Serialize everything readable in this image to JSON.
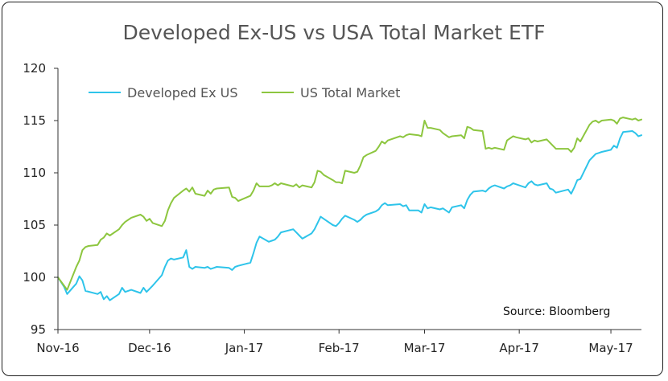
{
  "chart_data": {
    "type": "line",
    "title": "Developed Ex-US vs USA Total Market ETF",
    "source": "Source: Bloomberg",
    "ylim": [
      95,
      120
    ],
    "yticks": [
      95,
      100,
      105,
      110,
      115,
      120
    ],
    "xticks": [
      {
        "label": "Nov-16",
        "date": "2016-11-01"
      },
      {
        "label": "Dec-16",
        "date": "2016-12-01"
      },
      {
        "label": "Jan-17",
        "date": "2017-01-01"
      },
      {
        "label": "Feb-17",
        "date": "2017-02-01"
      },
      {
        "label": "Mar-17",
        "date": "2017-03-01"
      },
      {
        "label": "Apr-17",
        "date": "2017-04-01"
      },
      {
        "label": "May-17",
        "date": "2017-05-01"
      }
    ],
    "xlim": [
      "2016-11-01",
      "2017-05-11"
    ],
    "legend_position": "top-left",
    "grid": false,
    "series": [
      {
        "name": "Developed Ex US",
        "color": "#2ec4ea",
        "points": [
          [
            "2016-11-01",
            100.0
          ],
          [
            "2016-11-03",
            99.1
          ],
          [
            "2016-11-04",
            98.4
          ],
          [
            "2016-11-07",
            99.4
          ],
          [
            "2016-11-08",
            100.1
          ],
          [
            "2016-11-09",
            99.7
          ],
          [
            "2016-11-10",
            98.7
          ],
          [
            "2016-11-14",
            98.4
          ],
          [
            "2016-11-15",
            98.6
          ],
          [
            "2016-11-16",
            97.9
          ],
          [
            "2016-11-17",
            98.2
          ],
          [
            "2016-11-18",
            97.8
          ],
          [
            "2016-11-21",
            98.4
          ],
          [
            "2016-11-22",
            99.0
          ],
          [
            "2016-11-23",
            98.6
          ],
          [
            "2016-11-25",
            98.8
          ],
          [
            "2016-11-28",
            98.5
          ],
          [
            "2016-11-29",
            99.0
          ],
          [
            "2016-11-30",
            98.6
          ],
          [
            "2016-12-01",
            98.9
          ],
          [
            "2016-12-02",
            99.2
          ],
          [
            "2016-12-05",
            100.2
          ],
          [
            "2016-12-06",
            101.0
          ],
          [
            "2016-12-07",
            101.6
          ],
          [
            "2016-12-08",
            101.8
          ],
          [
            "2016-12-09",
            101.7
          ],
          [
            "2016-12-12",
            101.9
          ],
          [
            "2016-12-13",
            102.6
          ],
          [
            "2016-12-14",
            101.0
          ],
          [
            "2016-12-15",
            100.8
          ],
          [
            "2016-12-16",
            101.0
          ],
          [
            "2016-12-19",
            100.9
          ],
          [
            "2016-12-20",
            101.0
          ],
          [
            "2016-12-21",
            100.8
          ],
          [
            "2016-12-22",
            100.9
          ],
          [
            "2016-12-23",
            101.0
          ],
          [
            "2016-12-27",
            100.9
          ],
          [
            "2016-12-28",
            100.7
          ],
          [
            "2016-12-29",
            101.0
          ],
          [
            "2016-12-30",
            101.1
          ],
          [
            "2017-01-03",
            101.4
          ],
          [
            "2017-01-04",
            102.3
          ],
          [
            "2017-01-05",
            103.3
          ],
          [
            "2017-01-06",
            103.9
          ],
          [
            "2017-01-09",
            103.4
          ],
          [
            "2017-01-10",
            103.5
          ],
          [
            "2017-01-11",
            103.6
          ],
          [
            "2017-01-12",
            103.9
          ],
          [
            "2017-01-13",
            104.3
          ],
          [
            "2017-01-17",
            104.6
          ],
          [
            "2017-01-18",
            104.3
          ],
          [
            "2017-01-19",
            104.0
          ],
          [
            "2017-01-20",
            103.7
          ],
          [
            "2017-01-23",
            104.2
          ],
          [
            "2017-01-24",
            104.6
          ],
          [
            "2017-01-25",
            105.2
          ],
          [
            "2017-01-26",
            105.8
          ],
          [
            "2017-01-27",
            105.6
          ],
          [
            "2017-01-30",
            105.0
          ],
          [
            "2017-01-31",
            104.9
          ],
          [
            "2017-02-01",
            105.2
          ],
          [
            "2017-02-02",
            105.6
          ],
          [
            "2017-02-03",
            105.9
          ],
          [
            "2017-02-06",
            105.5
          ],
          [
            "2017-02-07",
            105.3
          ],
          [
            "2017-02-08",
            105.5
          ],
          [
            "2017-02-09",
            105.8
          ],
          [
            "2017-02-10",
            106.0
          ],
          [
            "2017-02-13",
            106.3
          ],
          [
            "2017-02-14",
            106.5
          ],
          [
            "2017-02-15",
            106.9
          ],
          [
            "2017-02-16",
            107.1
          ],
          [
            "2017-02-17",
            106.9
          ],
          [
            "2017-02-21",
            107.0
          ],
          [
            "2017-02-22",
            106.8
          ],
          [
            "2017-02-23",
            106.9
          ],
          [
            "2017-02-24",
            106.4
          ],
          [
            "2017-02-27",
            106.4
          ],
          [
            "2017-02-28",
            106.2
          ],
          [
            "2017-03-01",
            107.0
          ],
          [
            "2017-03-02",
            106.6
          ],
          [
            "2017-03-03",
            106.7
          ],
          [
            "2017-03-06",
            106.5
          ],
          [
            "2017-03-07",
            106.6
          ],
          [
            "2017-03-08",
            106.4
          ],
          [
            "2017-03-09",
            106.2
          ],
          [
            "2017-03-10",
            106.7
          ],
          [
            "2017-03-13",
            106.9
          ],
          [
            "2017-03-14",
            106.6
          ],
          [
            "2017-03-15",
            107.4
          ],
          [
            "2017-03-16",
            107.9
          ],
          [
            "2017-03-17",
            108.2
          ],
          [
            "2017-03-20",
            108.3
          ],
          [
            "2017-03-21",
            108.2
          ],
          [
            "2017-03-22",
            108.5
          ],
          [
            "2017-03-23",
            108.7
          ],
          [
            "2017-03-24",
            108.8
          ],
          [
            "2017-03-27",
            108.5
          ],
          [
            "2017-03-28",
            108.7
          ],
          [
            "2017-03-29",
            108.8
          ],
          [
            "2017-03-30",
            109.0
          ],
          [
            "2017-03-31",
            108.9
          ],
          [
            "2017-04-03",
            108.6
          ],
          [
            "2017-04-04",
            109.0
          ],
          [
            "2017-04-05",
            109.2
          ],
          [
            "2017-04-06",
            108.9
          ],
          [
            "2017-04-07",
            108.8
          ],
          [
            "2017-04-10",
            109.0
          ],
          [
            "2017-04-11",
            108.5
          ],
          [
            "2017-04-12",
            108.4
          ],
          [
            "2017-04-13",
            108.1
          ],
          [
            "2017-04-17",
            108.4
          ],
          [
            "2017-04-18",
            108.0
          ],
          [
            "2017-04-19",
            108.6
          ],
          [
            "2017-04-20",
            109.3
          ],
          [
            "2017-04-21",
            109.4
          ],
          [
            "2017-04-24",
            111.2
          ],
          [
            "2017-04-25",
            111.5
          ],
          [
            "2017-04-26",
            111.8
          ],
          [
            "2017-04-27",
            111.9
          ],
          [
            "2017-04-28",
            112.0
          ],
          [
            "2017-05-01",
            112.2
          ],
          [
            "2017-05-02",
            112.6
          ],
          [
            "2017-05-03",
            112.4
          ],
          [
            "2017-05-04",
            113.3
          ],
          [
            "2017-05-05",
            113.9
          ],
          [
            "2017-05-08",
            114.0
          ],
          [
            "2017-05-09",
            113.8
          ],
          [
            "2017-05-10",
            113.5
          ],
          [
            "2017-05-11",
            113.6
          ]
        ]
      },
      {
        "name": "US Total Market",
        "color": "#8dc63f",
        "points": [
          [
            "2016-11-01",
            100.0
          ],
          [
            "2016-11-03",
            99.2
          ],
          [
            "2016-11-04",
            98.8
          ],
          [
            "2016-11-07",
            101.0
          ],
          [
            "2016-11-08",
            101.6
          ],
          [
            "2016-11-09",
            102.6
          ],
          [
            "2016-11-10",
            102.9
          ],
          [
            "2016-11-11",
            103.0
          ],
          [
            "2016-11-14",
            103.1
          ],
          [
            "2016-11-15",
            103.6
          ],
          [
            "2016-11-16",
            103.8
          ],
          [
            "2016-11-17",
            104.2
          ],
          [
            "2016-11-18",
            104.0
          ],
          [
            "2016-11-21",
            104.6
          ],
          [
            "2016-11-22",
            105.0
          ],
          [
            "2016-11-23",
            105.3
          ],
          [
            "2016-11-25",
            105.7
          ],
          [
            "2016-11-28",
            106.0
          ],
          [
            "2016-11-29",
            105.8
          ],
          [
            "2016-11-30",
            105.4
          ],
          [
            "2016-12-01",
            105.6
          ],
          [
            "2016-12-02",
            105.2
          ],
          [
            "2016-12-05",
            104.9
          ],
          [
            "2016-12-06",
            105.4
          ],
          [
            "2016-12-07",
            106.4
          ],
          [
            "2016-12-08",
            107.1
          ],
          [
            "2016-12-09",
            107.6
          ],
          [
            "2016-12-12",
            108.3
          ],
          [
            "2016-12-13",
            108.5
          ],
          [
            "2016-12-14",
            108.2
          ],
          [
            "2016-12-15",
            108.6
          ],
          [
            "2016-12-16",
            108.0
          ],
          [
            "2016-12-19",
            107.8
          ],
          [
            "2016-12-20",
            108.3
          ],
          [
            "2016-12-21",
            108.0
          ],
          [
            "2016-12-22",
            108.4
          ],
          [
            "2016-12-23",
            108.5
          ],
          [
            "2016-12-27",
            108.6
          ],
          [
            "2016-12-28",
            107.7
          ],
          [
            "2016-12-29",
            107.6
          ],
          [
            "2016-12-30",
            107.3
          ],
          [
            "2017-01-03",
            107.8
          ],
          [
            "2017-01-04",
            108.3
          ],
          [
            "2017-01-05",
            109.0
          ],
          [
            "2017-01-06",
            108.7
          ],
          [
            "2017-01-09",
            108.7
          ],
          [
            "2017-01-10",
            108.8
          ],
          [
            "2017-01-11",
            109.0
          ],
          [
            "2017-01-12",
            108.8
          ],
          [
            "2017-01-13",
            109.0
          ],
          [
            "2017-01-17",
            108.7
          ],
          [
            "2017-01-18",
            108.9
          ],
          [
            "2017-01-19",
            108.6
          ],
          [
            "2017-01-20",
            108.8
          ],
          [
            "2017-01-23",
            108.6
          ],
          [
            "2017-01-24",
            109.1
          ],
          [
            "2017-01-25",
            110.2
          ],
          [
            "2017-01-26",
            110.1
          ],
          [
            "2017-01-27",
            109.8
          ],
          [
            "2017-01-30",
            109.3
          ],
          [
            "2017-01-31",
            109.1
          ],
          [
            "2017-02-01",
            109.1
          ],
          [
            "2017-02-02",
            109.0
          ],
          [
            "2017-02-03",
            110.2
          ],
          [
            "2017-02-06",
            110.0
          ],
          [
            "2017-02-07",
            110.1
          ],
          [
            "2017-02-08",
            110.7
          ],
          [
            "2017-02-09",
            111.5
          ],
          [
            "2017-02-10",
            111.7
          ],
          [
            "2017-02-13",
            112.1
          ],
          [
            "2017-02-14",
            112.5
          ],
          [
            "2017-02-15",
            113.0
          ],
          [
            "2017-02-16",
            112.8
          ],
          [
            "2017-02-17",
            113.1
          ],
          [
            "2017-02-21",
            113.5
          ],
          [
            "2017-02-22",
            113.4
          ],
          [
            "2017-02-23",
            113.6
          ],
          [
            "2017-02-24",
            113.7
          ],
          [
            "2017-02-27",
            113.6
          ],
          [
            "2017-02-28",
            113.5
          ],
          [
            "2017-03-01",
            115.0
          ],
          [
            "2017-03-02",
            114.3
          ],
          [
            "2017-03-03",
            114.3
          ],
          [
            "2017-03-06",
            114.1
          ],
          [
            "2017-03-07",
            113.8
          ],
          [
            "2017-03-08",
            113.6
          ],
          [
            "2017-03-09",
            113.4
          ],
          [
            "2017-03-10",
            113.5
          ],
          [
            "2017-03-13",
            113.6
          ],
          [
            "2017-03-14",
            113.3
          ],
          [
            "2017-03-15",
            114.4
          ],
          [
            "2017-03-16",
            114.3
          ],
          [
            "2017-03-17",
            114.1
          ],
          [
            "2017-03-20",
            114.0
          ],
          [
            "2017-03-21",
            112.3
          ],
          [
            "2017-03-22",
            112.4
          ],
          [
            "2017-03-23",
            112.3
          ],
          [
            "2017-03-24",
            112.4
          ],
          [
            "2017-03-27",
            112.2
          ],
          [
            "2017-03-28",
            113.1
          ],
          [
            "2017-03-29",
            113.3
          ],
          [
            "2017-03-30",
            113.5
          ],
          [
            "2017-03-31",
            113.4
          ],
          [
            "2017-04-03",
            113.2
          ],
          [
            "2017-04-04",
            113.3
          ],
          [
            "2017-04-05",
            112.9
          ],
          [
            "2017-04-06",
            113.1
          ],
          [
            "2017-04-07",
            113.0
          ],
          [
            "2017-04-10",
            113.2
          ],
          [
            "2017-04-11",
            112.9
          ],
          [
            "2017-04-12",
            112.6
          ],
          [
            "2017-04-13",
            112.3
          ],
          [
            "2017-04-17",
            112.3
          ],
          [
            "2017-04-18",
            112.0
          ],
          [
            "2017-04-19",
            112.4
          ],
          [
            "2017-04-20",
            113.3
          ],
          [
            "2017-04-21",
            113.0
          ],
          [
            "2017-04-24",
            114.6
          ],
          [
            "2017-04-25",
            114.9
          ],
          [
            "2017-04-26",
            115.0
          ],
          [
            "2017-04-27",
            114.8
          ],
          [
            "2017-04-28",
            115.0
          ],
          [
            "2017-05-01",
            115.1
          ],
          [
            "2017-05-02",
            115.0
          ],
          [
            "2017-05-03",
            114.7
          ],
          [
            "2017-05-04",
            115.2
          ],
          [
            "2017-05-05",
            115.3
          ],
          [
            "2017-05-08",
            115.1
          ],
          [
            "2017-05-09",
            115.2
          ],
          [
            "2017-05-10",
            115.0
          ],
          [
            "2017-05-11",
            115.1
          ]
        ]
      }
    ]
  }
}
